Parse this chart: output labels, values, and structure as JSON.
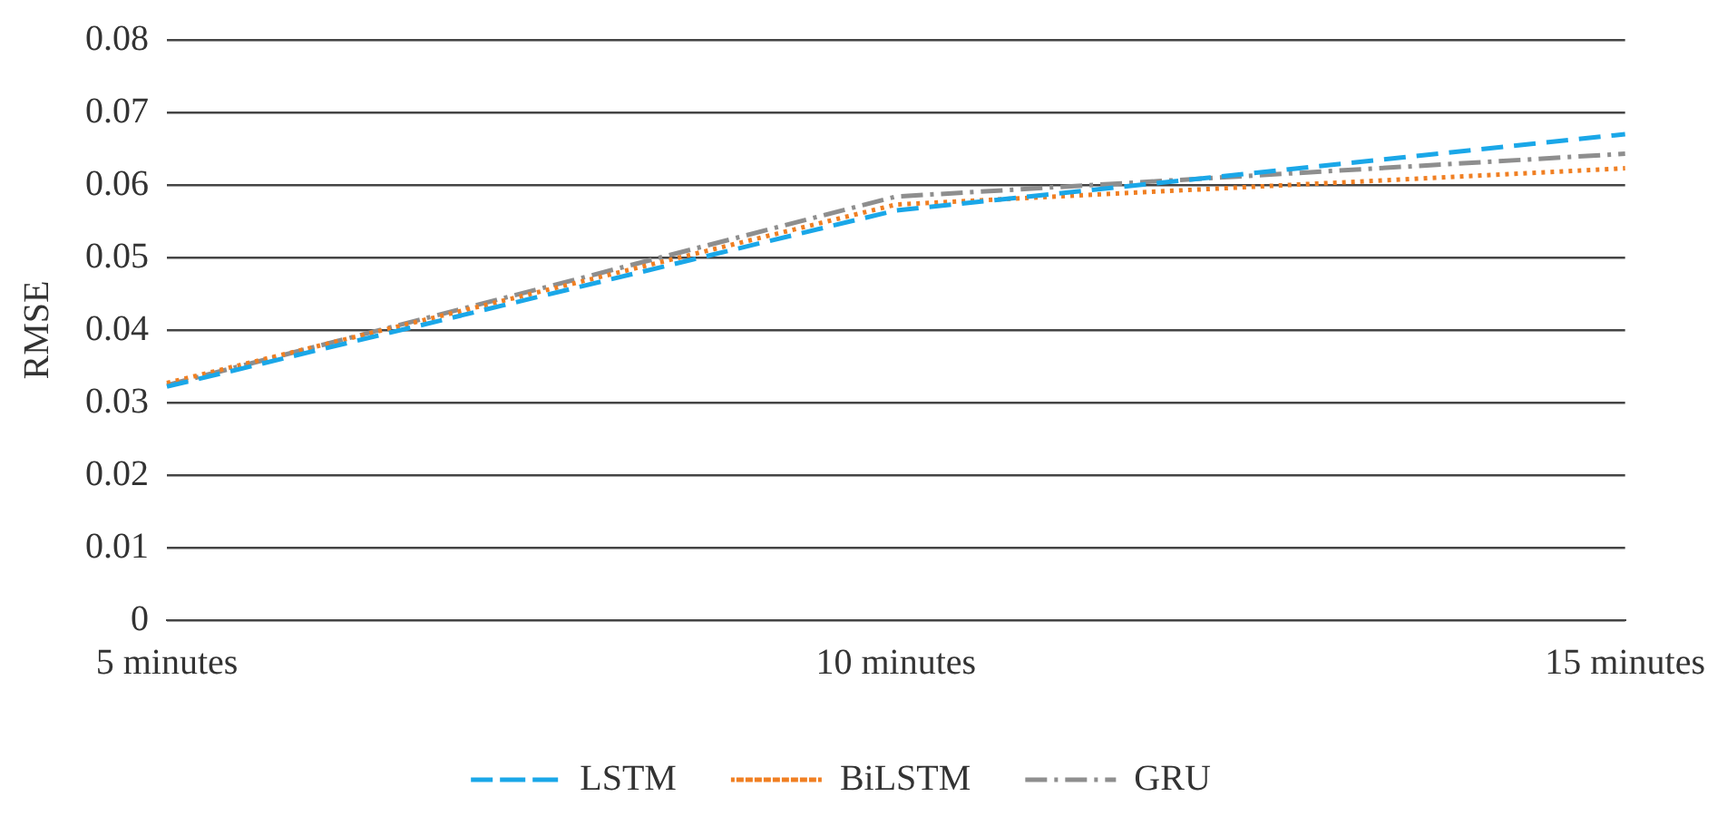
{
  "chart_data": {
    "type": "line",
    "ylabel": "RMSE",
    "categories": [
      "5 minutes",
      "10 minutes",
      "15 minutes"
    ],
    "series": [
      {
        "name": "LSTM",
        "color": "#1aa7e8",
        "line_style": "dashed",
        "values": [
          0.0322,
          0.0565,
          0.067
        ]
      },
      {
        "name": "BiLSTM",
        "color": "#f07f22",
        "line_style": "dotted",
        "values": [
          0.0327,
          0.0573,
          0.0623
        ]
      },
      {
        "name": "GRU",
        "color": "#8e8e8e",
        "line_style": "dashdot",
        "values": [
          0.0324,
          0.0584,
          0.0643
        ]
      }
    ],
    "ylim": [
      0,
      0.08
    ],
    "yticks": [
      0,
      0.01,
      0.02,
      0.03,
      0.04,
      0.05,
      0.06,
      0.07,
      0.08
    ],
    "grid": "y",
    "legend": "bottom",
    "marker": "none"
  }
}
